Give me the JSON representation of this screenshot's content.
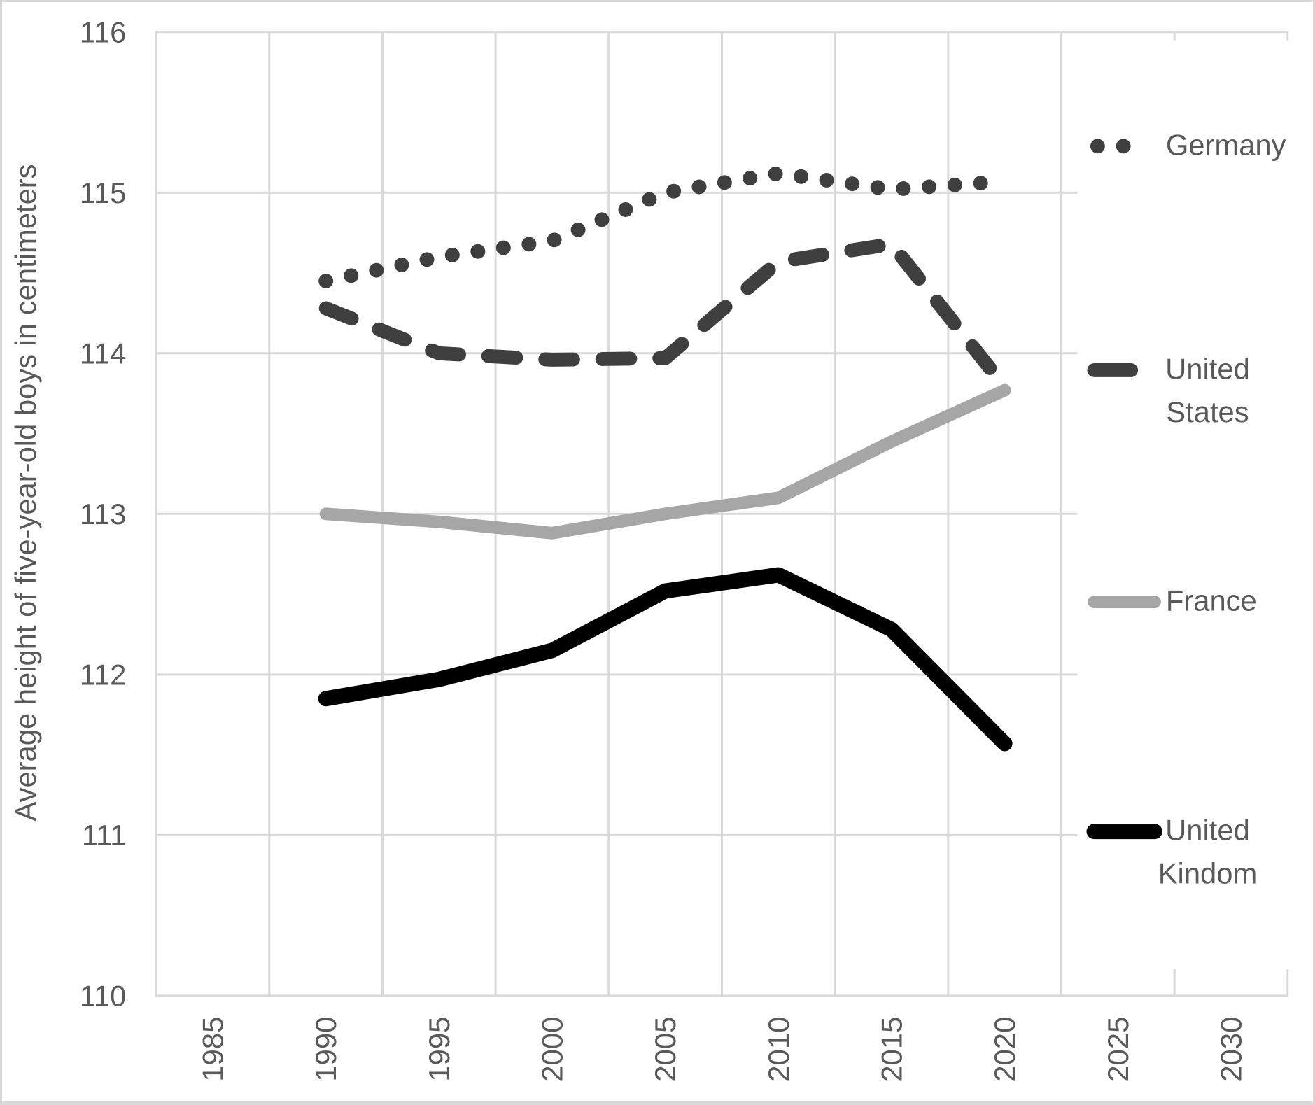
{
  "chart_data": {
    "type": "line",
    "title": "",
    "xlabel": "",
    "ylabel": "Average height of five-year-old boys in centimeters",
    "x_axis_tick_labels": [
      "1985",
      "1990",
      "1995",
      "2000",
      "2005",
      "2010",
      "2015",
      "2020",
      "2025",
      "2030"
    ],
    "y_axis_tick_labels": [
      "110",
      "111",
      "112",
      "113",
      "114",
      "115",
      "116"
    ],
    "ylim": [
      110,
      116
    ],
    "xlim_categories": [
      1985,
      2030
    ],
    "grid": "on",
    "legend_position": "right-overlay-white-fill",
    "x": [
      1990,
      1995,
      2000,
      2005,
      2010,
      2015,
      2020
    ],
    "series": [
      {
        "name": "Germany",
        "legend_lines": [
          "Germany"
        ],
        "style": "dotted",
        "color": "#3f3f3f",
        "values": [
          114.45,
          114.6,
          114.7,
          115.0,
          115.12,
          115.02,
          115.07
        ]
      },
      {
        "name": "United States",
        "legend_lines": [
          "United",
          "States"
        ],
        "style": "dashed",
        "color": "#3f3f3f",
        "values": [
          114.28,
          114.0,
          113.96,
          113.97,
          114.57,
          114.68,
          113.79
        ]
      },
      {
        "name": "France",
        "legend_lines": [
          "France"
        ],
        "style": "solid",
        "color": "#a6a6a6",
        "values": [
          113.0,
          112.95,
          112.88,
          113.0,
          113.1,
          113.45,
          113.77
        ]
      },
      {
        "name": "United Kindom",
        "legend_lines": [
          "United",
          "Kindom"
        ],
        "style": "solid",
        "color": "#000000",
        "values": [
          111.85,
          111.97,
          112.15,
          112.52,
          112.62,
          112.28,
          111.57
        ]
      }
    ],
    "colors": {
      "text": "#595959",
      "gridline": "#d9d9d9",
      "plot_border": "#d9d9d9",
      "background": "#ffffff"
    }
  }
}
